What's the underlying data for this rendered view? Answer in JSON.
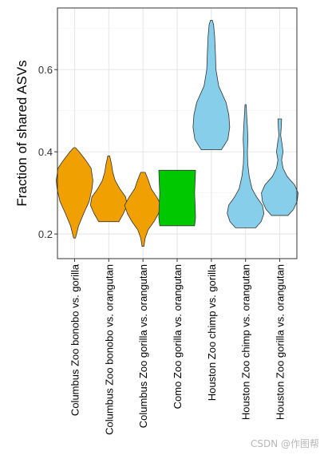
{
  "chart_data": {
    "type": "violin",
    "ylabel": "Fraction of shared ASVs",
    "xlabel": "",
    "ylim": [
      0.14,
      0.75
    ],
    "yticks": [
      0.2,
      0.4,
      0.6
    ],
    "ytick_labels": [
      "0.2",
      "0.4",
      "0.6"
    ],
    "grid": true,
    "categories": [
      "Columbus Zoo bonobo vs. gorilla",
      "Columbus Zoo bonobo vs. orangutan",
      "Columbus Zoo gorilla vs. orangutan",
      "Como Zoo gorilla vs. orangutan",
      "Houston Zoo chimp vs. gorilla",
      "Houston Zoo chimp vs. orangutan",
      "Houston Zoo gorilla vs. orangutan"
    ],
    "series": [
      {
        "color": "#F0A000",
        "min": 0.19,
        "max": 0.41,
        "profile": [
          [
            0.19,
            0.05
          ],
          [
            0.22,
            0.22
          ],
          [
            0.25,
            0.5
          ],
          [
            0.28,
            0.8
          ],
          [
            0.31,
            0.95
          ],
          [
            0.33,
            1.0
          ],
          [
            0.36,
            0.9
          ],
          [
            0.38,
            0.6
          ],
          [
            0.4,
            0.25
          ],
          [
            0.41,
            0.05
          ]
        ]
      },
      {
        "color": "#F0A000",
        "min": 0.23,
        "max": 0.39,
        "profile": [
          [
            0.23,
            0.55
          ],
          [
            0.25,
            0.8
          ],
          [
            0.27,
            1.0
          ],
          [
            0.29,
            0.92
          ],
          [
            0.31,
            0.6
          ],
          [
            0.33,
            0.35
          ],
          [
            0.35,
            0.22
          ],
          [
            0.37,
            0.15
          ],
          [
            0.39,
            0.05
          ]
        ]
      },
      {
        "color": "#F0A000",
        "min": 0.17,
        "max": 0.35,
        "profile": [
          [
            0.17,
            0.05
          ],
          [
            0.19,
            0.12
          ],
          [
            0.21,
            0.28
          ],
          [
            0.23,
            0.6
          ],
          [
            0.25,
            0.85
          ],
          [
            0.27,
            1.0
          ],
          [
            0.29,
            0.75
          ],
          [
            0.31,
            0.45
          ],
          [
            0.33,
            0.3
          ],
          [
            0.35,
            0.12
          ]
        ]
      },
      {
        "color": "#00C800",
        "min": 0.22,
        "max": 0.355,
        "profile": [
          [
            0.22,
            0.95
          ],
          [
            0.24,
            1.0
          ],
          [
            0.27,
            0.98
          ],
          [
            0.3,
            0.95
          ],
          [
            0.33,
            0.98
          ],
          [
            0.355,
            1.0
          ]
        ]
      },
      {
        "color": "#87CEEB",
        "min": 0.405,
        "max": 0.72,
        "profile": [
          [
            0.405,
            0.55
          ],
          [
            0.43,
            0.9
          ],
          [
            0.46,
            1.0
          ],
          [
            0.49,
            0.95
          ],
          [
            0.52,
            0.8
          ],
          [
            0.56,
            0.4
          ],
          [
            0.6,
            0.25
          ],
          [
            0.64,
            0.22
          ],
          [
            0.68,
            0.18
          ],
          [
            0.71,
            0.12
          ],
          [
            0.72,
            0.05
          ]
        ]
      },
      {
        "color": "#87CEEB",
        "min": 0.215,
        "max": 0.515,
        "profile": [
          [
            0.215,
            0.55
          ],
          [
            0.23,
            0.85
          ],
          [
            0.25,
            1.0
          ],
          [
            0.27,
            0.92
          ],
          [
            0.29,
            0.6
          ],
          [
            0.31,
            0.35
          ],
          [
            0.34,
            0.2
          ],
          [
            0.37,
            0.12
          ],
          [
            0.4,
            0.1
          ],
          [
            0.43,
            0.13
          ],
          [
            0.46,
            0.1
          ],
          [
            0.49,
            0.06
          ],
          [
            0.515,
            0.03
          ]
        ]
      },
      {
        "color": "#87CEEB",
        "min": 0.245,
        "max": 0.48,
        "profile": [
          [
            0.245,
            0.45
          ],
          [
            0.26,
            0.75
          ],
          [
            0.28,
            0.95
          ],
          [
            0.3,
            1.0
          ],
          [
            0.32,
            0.8
          ],
          [
            0.34,
            0.4
          ],
          [
            0.36,
            0.18
          ],
          [
            0.38,
            0.1
          ],
          [
            0.4,
            0.18
          ],
          [
            0.42,
            0.12
          ],
          [
            0.44,
            0.05
          ],
          [
            0.46,
            0.08
          ],
          [
            0.48,
            0.1
          ]
        ]
      }
    ]
  },
  "watermark": "CSDN @作图帮"
}
